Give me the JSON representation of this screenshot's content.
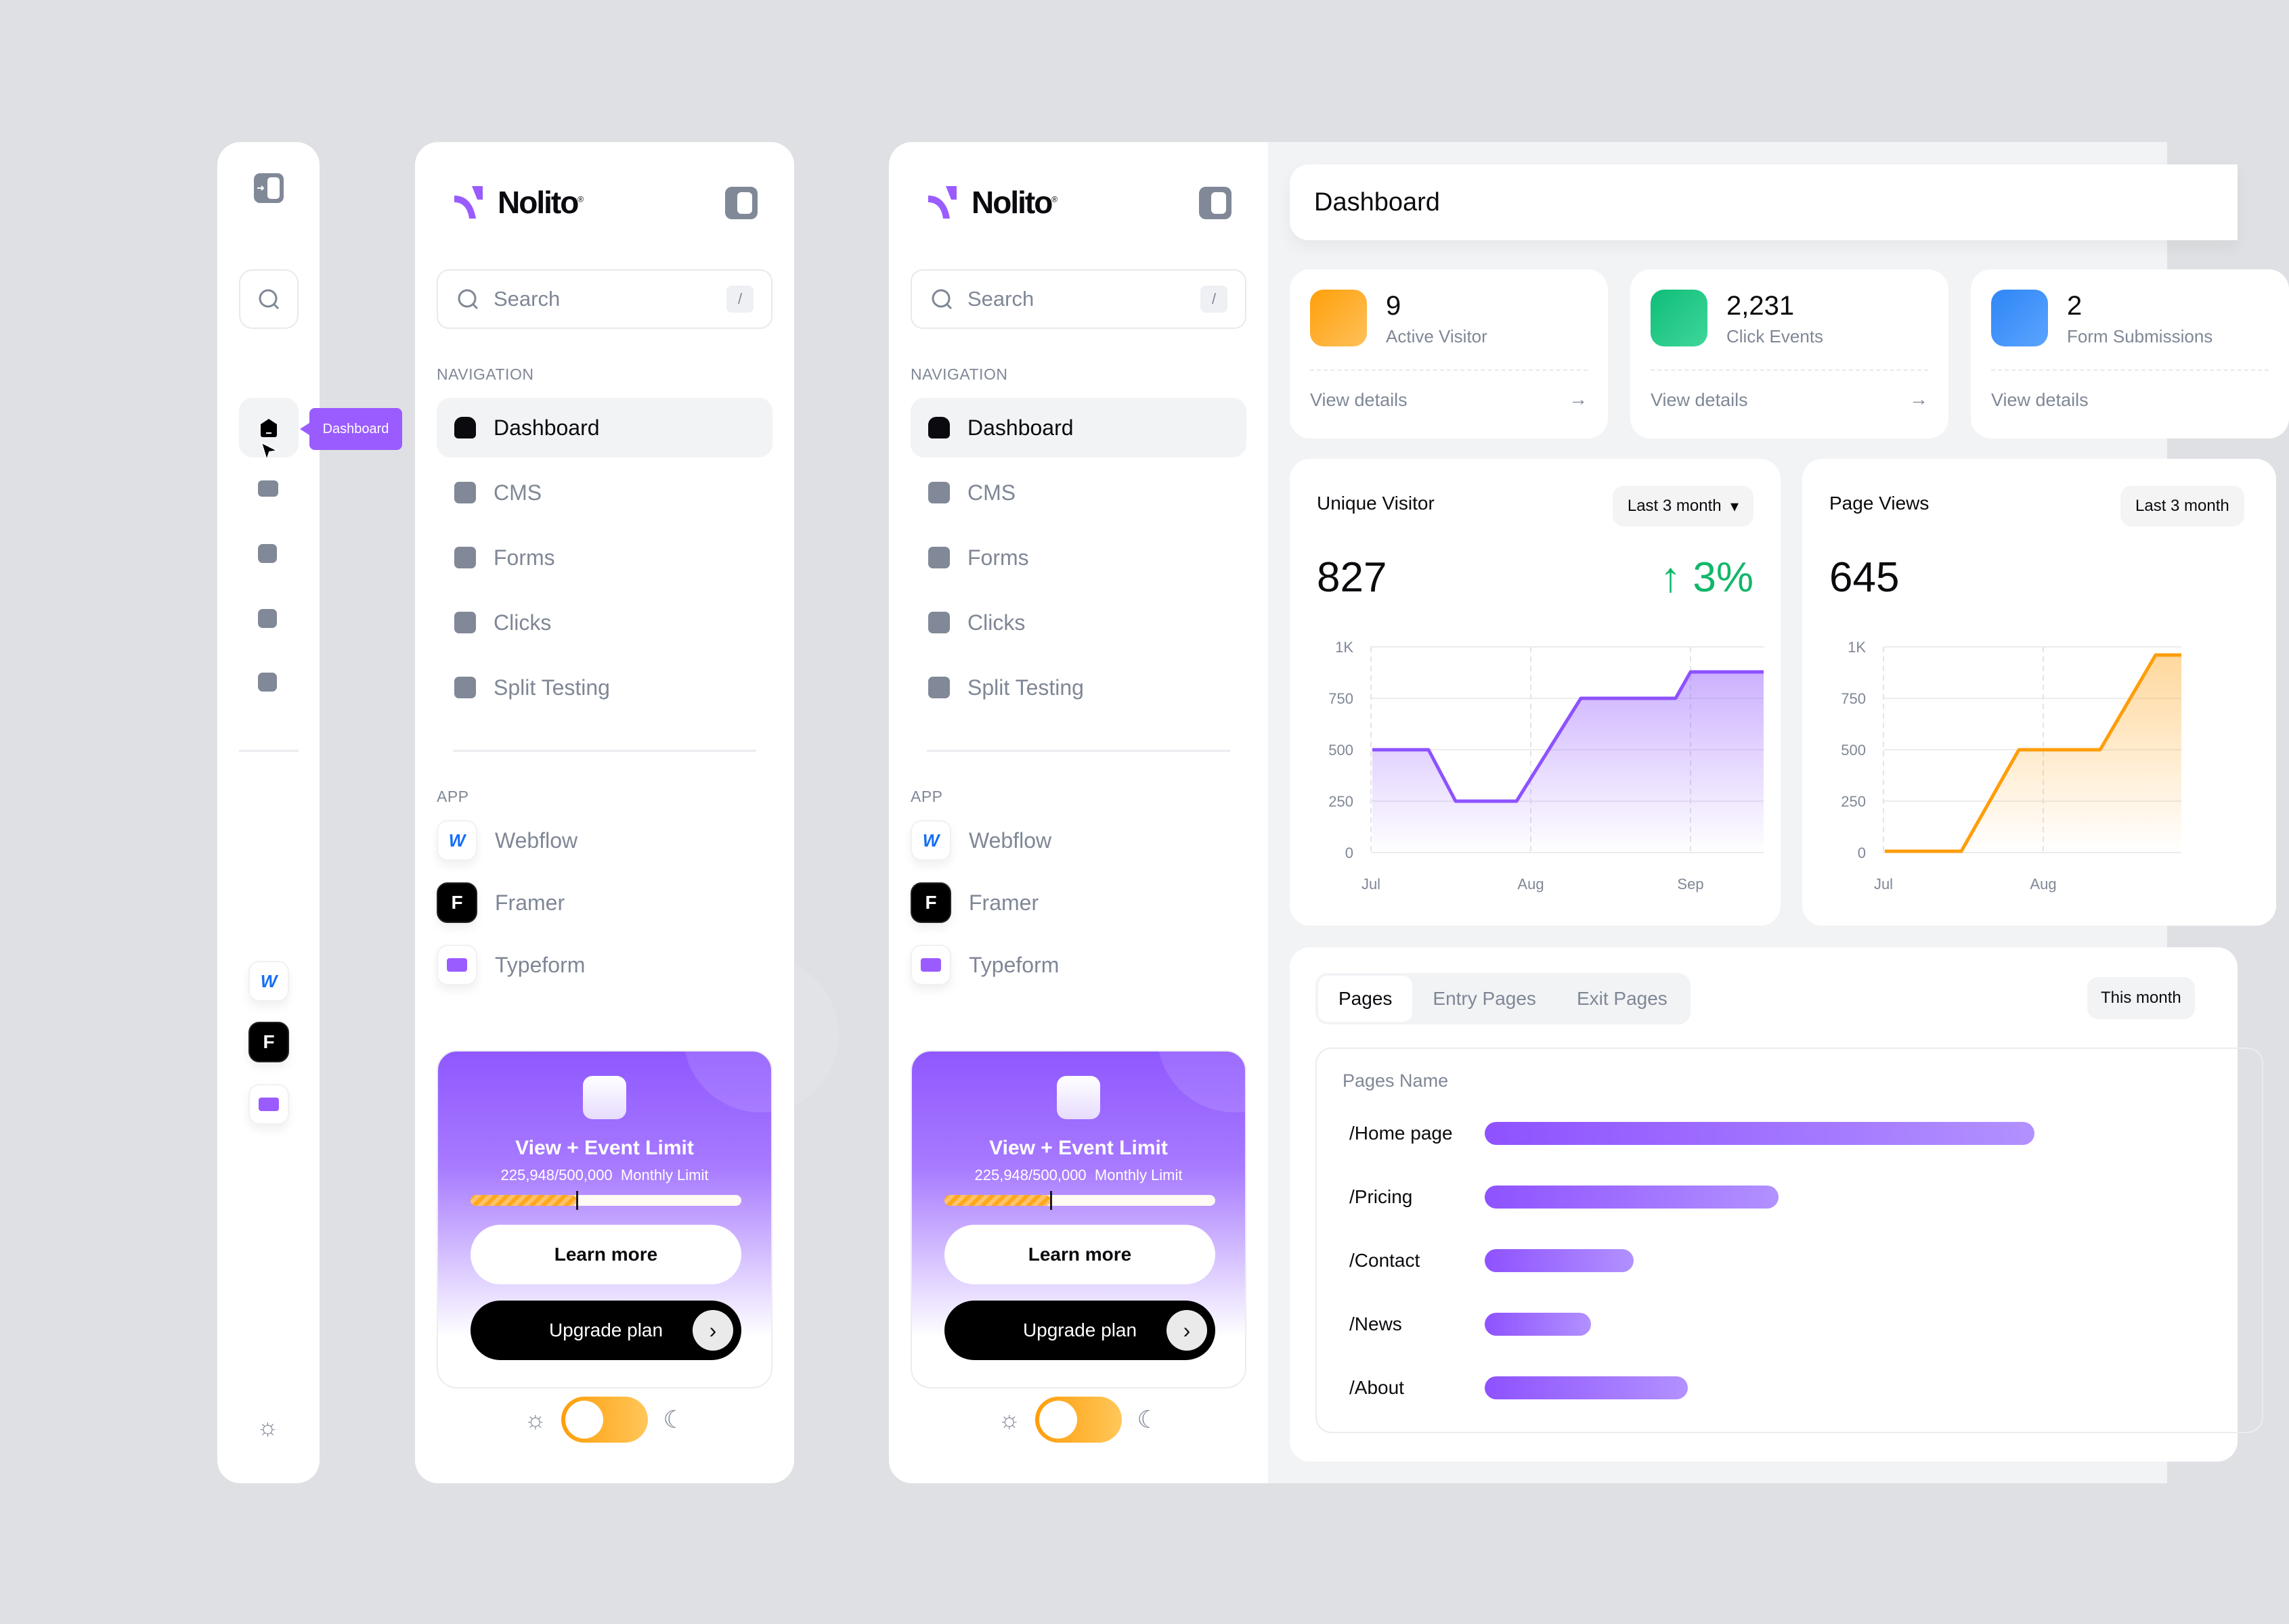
{
  "brand": {
    "name": "Nolito",
    "reg": "®",
    "accent": "#9a5cff"
  },
  "rail": {
    "tooltip": "Dashboard",
    "icons": [
      "sidebar-expand-icon",
      "search-icon",
      "dashboard-icon",
      "cms-icon",
      "forms-icon",
      "clicks-icon",
      "split-testing-icon",
      "webflow-icon",
      "framer-icon",
      "typeform-icon",
      "sun-icon"
    ]
  },
  "sidebar": {
    "search_placeholder": "Search",
    "search_shortcut": "/",
    "nav_section": "NAVIGATION",
    "nav": [
      {
        "label": "Dashboard",
        "icon": "home-icon",
        "active": true
      },
      {
        "label": "CMS",
        "icon": "layers-icon"
      },
      {
        "label": "Forms",
        "icon": "inbox-icon"
      },
      {
        "label": "Clicks",
        "icon": "link-icon"
      },
      {
        "label": "Split Testing",
        "icon": "split-icon"
      }
    ],
    "app_section": "APP",
    "apps": [
      {
        "label": "Webflow",
        "icon": "webflow-icon",
        "color": "#146ef5"
      },
      {
        "label": "Framer",
        "icon": "framer-icon",
        "color": "#000000"
      },
      {
        "label": "Typeform",
        "icon": "typeform-icon",
        "color": "#9a5cff"
      }
    ],
    "promo": {
      "title": "View + Event Limit",
      "usage": "225,948/500,000",
      "period": "Monthly Limit",
      "used": 225948,
      "limit": 500000,
      "learn_more": "Learn more",
      "upgrade": "Upgrade plan",
      "upgrade_arrow": "›"
    },
    "theme": {
      "light_icon": "☼",
      "dark_icon": "☾",
      "mode": "light"
    }
  },
  "header": {
    "title": "Dashboard"
  },
  "stats": [
    {
      "value": "9",
      "label": "Active Visitor",
      "link": "View details",
      "arrow": "→",
      "color": "#ffa31a"
    },
    {
      "value": "2,231",
      "label": "Click Events",
      "link": "View details",
      "arrow": "→",
      "color": "#12c07a"
    },
    {
      "value": "2",
      "label": "Form Submissions",
      "link": "View details",
      "arrow": "→",
      "color": "#2f86f6"
    }
  ],
  "charts": {
    "unique_visitor": {
      "title": "Unique Visitor",
      "range": "Last 3 month",
      "value": "827",
      "change": "↑ 3%"
    },
    "page_views": {
      "title": "Page Views",
      "range": "Last 3 month",
      "value": "645"
    }
  },
  "chart_data": [
    {
      "type": "area",
      "title": "Unique Visitor",
      "x": [
        "Jul",
        "Jul",
        "Jul-mid",
        "Jul-late",
        "Aug",
        "Aug-mid",
        "Aug-late",
        "Sep",
        "Sep-end"
      ],
      "values": [
        500,
        500,
        250,
        250,
        500,
        750,
        750,
        880,
        880
      ],
      "xticks": [
        "Jul",
        "Aug",
        "Sep"
      ],
      "yticks": [
        "0",
        "250",
        "500",
        "750",
        "1K"
      ],
      "ylim": [
        0,
        1000
      ],
      "color": "#8e52ff"
    },
    {
      "type": "area",
      "title": "Page Views",
      "x": [
        "Jul",
        "Jul-mid",
        "Jul-late",
        "Aug",
        "Aug-mid",
        "Sep"
      ],
      "values": [
        0,
        0,
        500,
        500,
        950,
        950
      ],
      "xticks": [
        "Jul",
        "Aug"
      ],
      "yticks": [
        "0",
        "250",
        "500",
        "750",
        "1K"
      ],
      "ylim": [
        0,
        1000
      ],
      "color": "#ff9d0a"
    },
    {
      "type": "bar",
      "title": "Pages",
      "categories": [
        "/Home page",
        "/Pricing",
        "/Contact",
        "/News",
        "/About"
      ],
      "values": [
        100,
        53,
        27,
        19,
        37
      ]
    }
  ],
  "pages": {
    "tabs": [
      "Pages",
      "Entry Pages",
      "Exit Pages"
    ],
    "active_tab": "Pages",
    "range": "This month",
    "column": "Pages Name",
    "rows": [
      {
        "name": "/Home page",
        "pct": 100
      },
      {
        "name": "/Pricing",
        "pct": 53
      },
      {
        "name": "/Contact",
        "pct": 27
      },
      {
        "name": "/News",
        "pct": 19
      },
      {
        "name": "/About",
        "pct": 37
      }
    ]
  }
}
